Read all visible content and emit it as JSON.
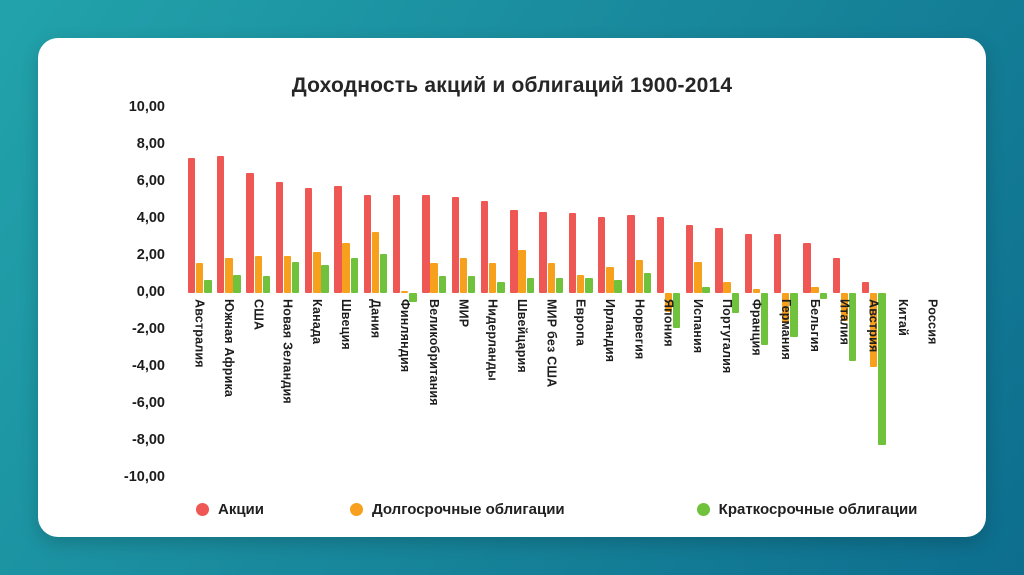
{
  "page": {
    "background_gradient": [
      "#22a3ab",
      "#0d6e8e"
    ],
    "card_color": "#ffffff"
  },
  "chart_data": {
    "type": "bar",
    "title": "Доходность акций и облигаций 1900-2014",
    "xlabel": "",
    "ylabel": "",
    "ylim": [
      -10,
      10
    ],
    "ytick_step": 2,
    "ytick_labels": [
      "10,00",
      "8,00",
      "6,00",
      "4,00",
      "2,00",
      "0,00",
      "-2,00",
      "-4,00",
      "-6,00",
      "-8,00",
      "-10,00"
    ],
    "grid": false,
    "legend_position": "bottom",
    "categories": [
      "Австралия",
      "Южная Африка",
      "США",
      "Новая Зеландия",
      "Канада",
      "Швеция",
      "Дания",
      "Финляндия",
      "Великобритания",
      "МИР",
      "Нидерланды",
      "Швейцария",
      "МИР без США",
      "Европа",
      "Ирландия",
      "Норвегия",
      "Япония",
      "Испания",
      "Португалия",
      "Франция",
      "Германия",
      "Бельгия",
      "Италия",
      "Австрия",
      "Китай",
      "Россия"
    ],
    "series": [
      {
        "name": "Акции",
        "color": "#ee5753",
        "values": [
          7.3,
          7.4,
          6.5,
          6.0,
          5.7,
          5.8,
          5.3,
          5.3,
          5.3,
          5.2,
          5.0,
          4.5,
          4.4,
          4.3,
          4.1,
          4.2,
          4.1,
          3.7,
          3.5,
          3.2,
          3.2,
          2.7,
          1.9,
          0.6,
          null,
          null
        ]
      },
      {
        "name": "Долгосрочные облигации",
        "color": "#f6a01e",
        "values": [
          1.6,
          1.9,
          2.0,
          2.0,
          2.2,
          2.7,
          3.3,
          0.1,
          1.6,
          1.9,
          1.6,
          2.3,
          1.6,
          1.0,
          1.4,
          1.8,
          -1.0,
          1.7,
          0.6,
          0.2,
          -1.6,
          0.3,
          -1.5,
          -4.0,
          null,
          null
        ]
      },
      {
        "name": "Краткосрочные облигации",
        "color": "#70c23d",
        "values": [
          0.7,
          1.0,
          0.9,
          1.7,
          1.5,
          1.9,
          2.1,
          -0.5,
          0.9,
          0.9,
          0.6,
          0.8,
          0.8,
          0.8,
          0.7,
          1.1,
          -1.9,
          0.3,
          -1.1,
          -2.8,
          -2.4,
          -0.3,
          -3.7,
          -8.2,
          null,
          null
        ]
      }
    ]
  }
}
